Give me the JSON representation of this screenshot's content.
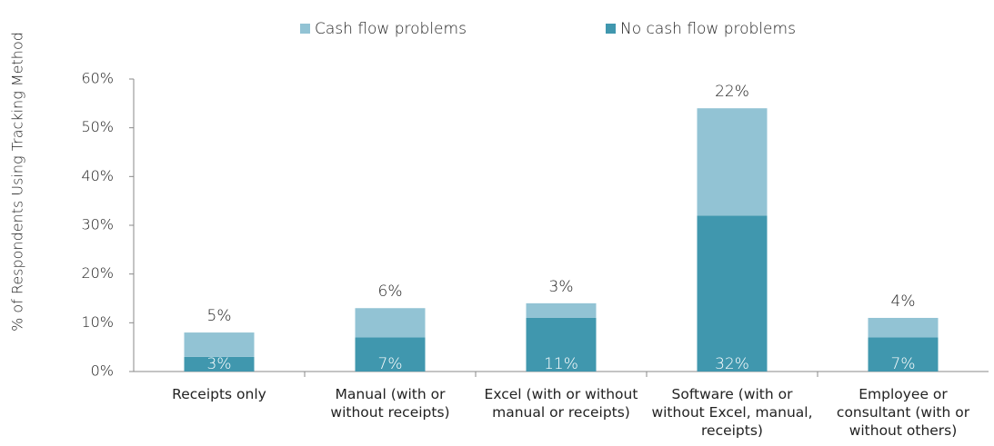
{
  "chart_data": {
    "type": "bar",
    "stacked": true,
    "y_label": "% of Respondents Using Tracking Method",
    "categories": [
      "Receipts only",
      "Manual (with or without receipts)",
      "Excel (with or without manual or receipts)",
      "Software (with or without Excel, manual, receipts)",
      "Employee or consultant (with or without others)"
    ],
    "series": [
      {
        "name": "No cash flow problems",
        "color": "#4097ae",
        "values": [
          3,
          7,
          11,
          32,
          7
        ],
        "value_labels": [
          "3%",
          "7%",
          "11%",
          "32%",
          "7%"
        ]
      },
      {
        "name": "Cash flow problems",
        "color": "#92c3d4",
        "values": [
          5,
          6,
          3,
          22,
          4
        ],
        "value_labels": [
          "5%",
          "6%",
          "3%",
          "22%",
          "4%"
        ]
      }
    ],
    "ylim": [
      0,
      60
    ],
    "yticks": [
      {
        "value": 0,
        "label": "0%"
      },
      {
        "value": 10,
        "label": "10%"
      },
      {
        "value": 20,
        "label": "20%"
      },
      {
        "value": 30,
        "label": "30%"
      },
      {
        "value": 40,
        "label": "40%"
      },
      {
        "value": 50,
        "label": "50%"
      },
      {
        "value": 60,
        "label": "60%"
      }
    ],
    "legend": "top",
    "grid": false
  }
}
